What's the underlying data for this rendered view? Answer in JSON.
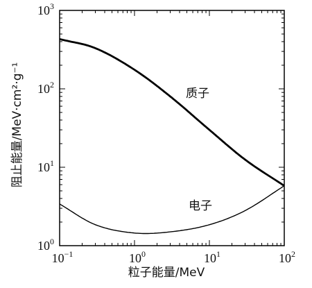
{
  "chart_data": {
    "type": "line",
    "title": "",
    "xlabel": "粒子能量/MeV",
    "ylabel": "阻止能量/MeV·cm²·g⁻¹",
    "x_scale": "log",
    "y_scale": "log",
    "xlim": [
      0.1,
      100
    ],
    "ylim": [
      1,
      1000
    ],
    "x_ticks": [
      {
        "value": 0.1,
        "base": "10",
        "exp": "−1"
      },
      {
        "value": 1,
        "base": "10",
        "exp": "0"
      },
      {
        "value": 10,
        "base": "10",
        "exp": "1"
      },
      {
        "value": 100,
        "base": "10",
        "exp": "2"
      }
    ],
    "y_ticks": [
      {
        "value": 1,
        "base": "10",
        "exp": "0"
      },
      {
        "value": 10,
        "base": "10",
        "exp": "1"
      },
      {
        "value": 100,
        "base": "10",
        "exp": "2"
      },
      {
        "value": 1000,
        "base": "10",
        "exp": "3"
      }
    ],
    "grid": false,
    "legend": "none",
    "series": [
      {
        "name": "质子",
        "color": "#000000",
        "x": [
          0.1,
          0.3,
          1,
          3,
          10,
          30,
          100
        ],
        "y": [
          430,
          330,
          175,
          80,
          30,
          12.5,
          5.8
        ]
      },
      {
        "name": "电子",
        "color": "#000000",
        "x": [
          0.1,
          0.3,
          1,
          3,
          10,
          30,
          100
        ],
        "y": [
          3.4,
          1.85,
          1.45,
          1.5,
          1.85,
          2.8,
          5.8
        ]
      }
    ]
  }
}
